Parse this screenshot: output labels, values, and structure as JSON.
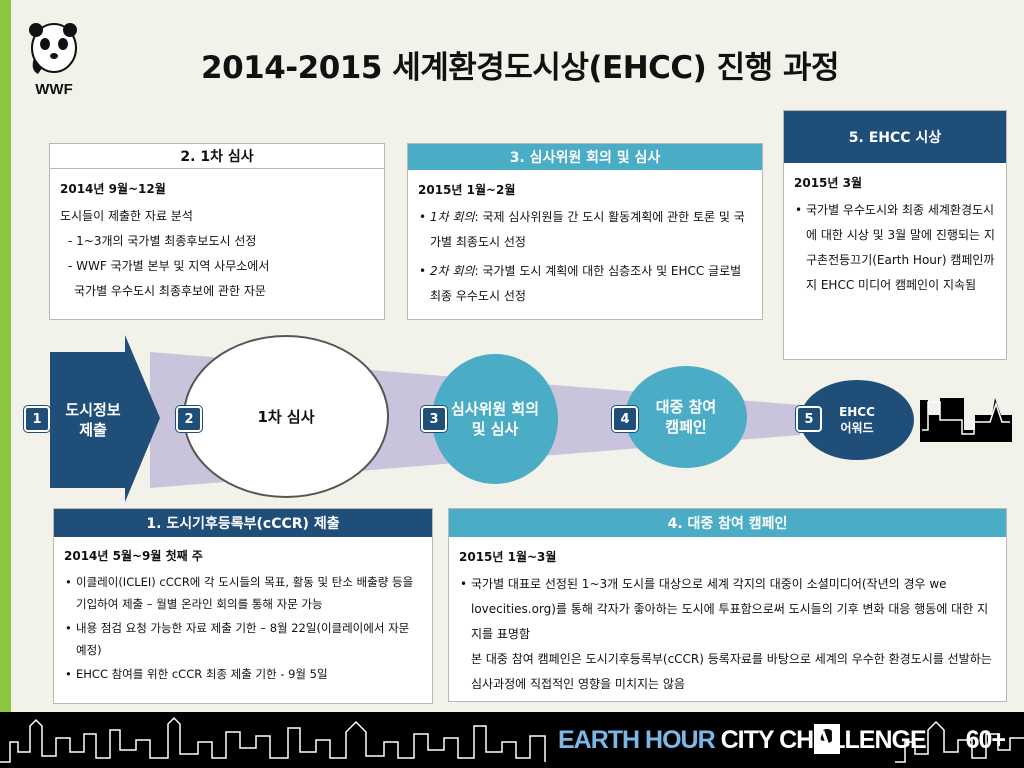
{
  "title": "2014-2015 세계환경도시상(EHCC) 진행 과정",
  "logo_text": "WWF",
  "box_review1": {
    "header": "2. 1차 심사",
    "date": "2014년 9월~12월",
    "lines": [
      "도시들이 제출한 자료 분석",
      "- 1~3개의 국가별 최종후보도시 선정",
      "- WWF 국가별 본부 및 지역 사무소에서",
      "국가별 우수도시 최종후보에 관한 자문"
    ]
  },
  "box_committee": {
    "header": "3. 심사위원 회의 및 심사",
    "date": "2015년 1월~2월",
    "bullet1_em": "1차 회의",
    "bullet1_text": ": 국제 심사위원들 간 도시 활동계획에 관한 토론 및 국가별 최종도시 선정",
    "bullet2_em": "2차 회의",
    "bullet2_text": ": 국가별 도시 계획에 대한 심층조사 및 EHCC 글로벌 최종 우수도시 선정"
  },
  "box_award": {
    "header": "5. EHCC 시상",
    "date": "2015년 3월",
    "bullet": "국가별 우수도시와 최종 세계환경도시에 대한 시상 및 3월 말에 진행되는 지구촌전등끄기(Earth Hour) 캠페인까지 EHCC 미디어 캠페인이 지속됨"
  },
  "box_cccr": {
    "header": "1. 도시기후등록부(cCCR) 제출",
    "date": "2014년 5월~9월 첫째 주",
    "bullets": [
      "이클레이(ICLEI) cCCR에  각 도시들의 목표, 활동 및 탄소 배출량 등을 기입하여 제출 – 월별 온라인 회의를 통해 자문 가능",
      "내용 점검 요청 가능한 자료 제출 기한 – 8월 22일(이클레이에서 자문 예정)",
      "EHCC 참여를 위한 cCCR 최종 제출 기한 - 9월 5일"
    ]
  },
  "box_campaign": {
    "header": "4. 대중 참여 캠페인",
    "date": "2015년 1월~3월",
    "bullet": "국가별 대표로 선정된 1~3개 도시를 대상으로 세계 각지의 대중이 소셜미디어(작년의 경우 we lovecities.org)를 통해  각자가 좋아하는 도시에 투표함으로써 도시들의 기후 변화 대응 행동에 대한 지지를 표명함",
    "note": "본 대중 참여 캠페인은 도시기후등록부(cCCR) 등록자료를 바탕으로 세계의 우수한 환경도시를 선발하는 심사과정에 직접적인 영향을 미치지는 않음"
  },
  "flow": {
    "step1": {
      "num": "1",
      "label": "도시정보 제출"
    },
    "step2": {
      "num": "2",
      "label": "1차 심사"
    },
    "step3": {
      "num": "3",
      "label": "심사위원 회의 및 심사"
    },
    "step4": {
      "num": "4",
      "label": "대중 참여 캠페인"
    },
    "step5": {
      "num": "5",
      "label": "EHCC 어워드"
    }
  },
  "footer": {
    "earth_hour": "EARTH HOUR",
    "city_challenge": "CITY CHALLENGE",
    "sixty": "60+"
  },
  "colors": {
    "navy": "#1f4e79",
    "teal": "#4bacc6",
    "lavender": "#c9c3dc",
    "green": "#8cc63f"
  }
}
